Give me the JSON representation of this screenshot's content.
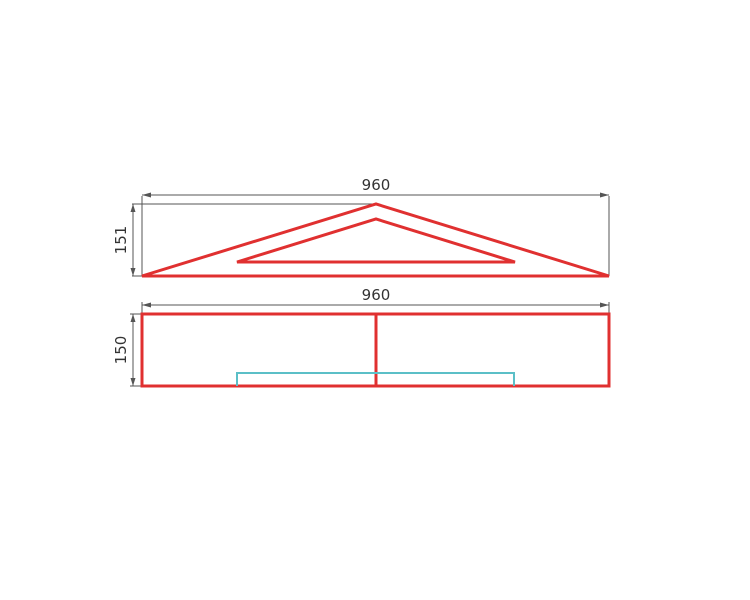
{
  "colors": {
    "outline": "#e03030",
    "accent": "#5bbfc7",
    "dimension": "#555555",
    "text": "#333333"
  },
  "top_view": {
    "width_label": "960",
    "height_label": "151"
  },
  "front_view": {
    "width_label": "960",
    "height_label": "150"
  }
}
